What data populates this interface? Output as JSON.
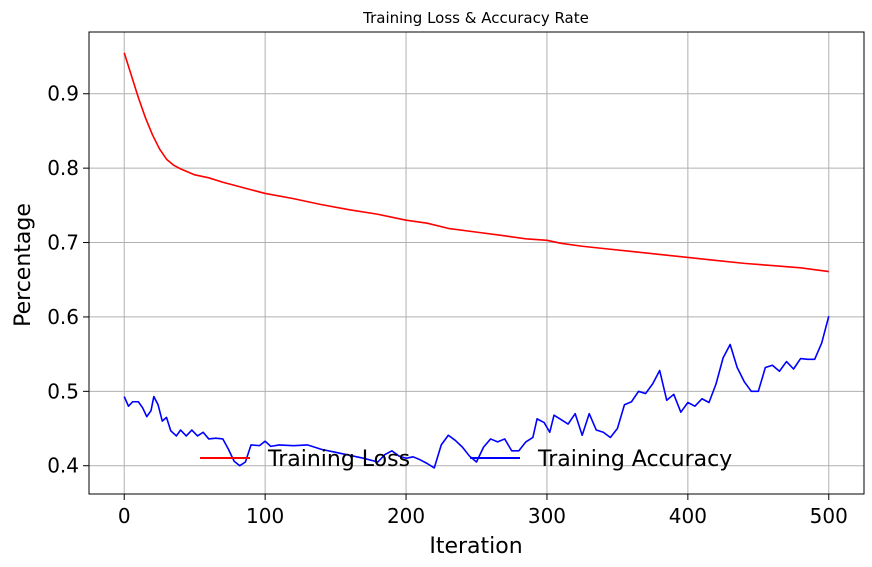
{
  "chart_data": {
    "type": "line",
    "title": "Training Loss & Accuracy Rate",
    "xlabel": "Iteration",
    "ylabel": "Percentage",
    "xlim": [
      -25,
      525
    ],
    "ylim": [
      0.362,
      0.983
    ],
    "xticks": [
      0,
      100,
      200,
      300,
      400,
      500
    ],
    "yticks": [
      0.4,
      0.5,
      0.6,
      0.7,
      0.8,
      0.9
    ],
    "grid": true,
    "legend": {
      "placement": "lower-center",
      "columns": 2
    },
    "series": [
      {
        "name": "Training Loss",
        "color": "#ff0000",
        "points": [
          [
            0,
            0.955
          ],
          [
            5,
            0.925
          ],
          [
            10,
            0.895
          ],
          [
            15,
            0.868
          ],
          [
            20,
            0.845
          ],
          [
            25,
            0.826
          ],
          [
            30,
            0.812
          ],
          [
            35,
            0.804
          ],
          [
            40,
            0.799
          ],
          [
            45,
            0.795
          ],
          [
            50,
            0.791
          ],
          [
            55,
            0.789
          ],
          [
            60,
            0.787
          ],
          [
            70,
            0.781
          ],
          [
            80,
            0.776
          ],
          [
            90,
            0.771
          ],
          [
            100,
            0.766
          ],
          [
            120,
            0.759
          ],
          [
            140,
            0.751
          ],
          [
            160,
            0.744
          ],
          [
            180,
            0.738
          ],
          [
            200,
            0.73
          ],
          [
            215,
            0.726
          ],
          [
            230,
            0.719
          ],
          [
            250,
            0.714
          ],
          [
            270,
            0.709
          ],
          [
            285,
            0.705
          ],
          [
            300,
            0.703
          ],
          [
            310,
            0.699
          ],
          [
            325,
            0.695
          ],
          [
            340,
            0.692
          ],
          [
            360,
            0.688
          ],
          [
            380,
            0.684
          ],
          [
            400,
            0.68
          ],
          [
            420,
            0.676
          ],
          [
            440,
            0.672
          ],
          [
            460,
            0.669
          ],
          [
            480,
            0.666
          ],
          [
            500,
            0.661
          ]
        ]
      },
      {
        "name": "Training Accuracy",
        "color": "#0000ff",
        "points": [
          [
            0,
            0.493
          ],
          [
            3,
            0.48
          ],
          [
            6,
            0.486
          ],
          [
            10,
            0.486
          ],
          [
            13,
            0.478
          ],
          [
            16,
            0.466
          ],
          [
            19,
            0.474
          ],
          [
            21,
            0.493
          ],
          [
            24,
            0.482
          ],
          [
            27,
            0.46
          ],
          [
            30,
            0.465
          ],
          [
            33,
            0.447
          ],
          [
            37,
            0.44
          ],
          [
            40,
            0.448
          ],
          [
            44,
            0.44
          ],
          [
            48,
            0.448
          ],
          [
            52,
            0.44
          ],
          [
            56,
            0.445
          ],
          [
            60,
            0.436
          ],
          [
            65,
            0.437
          ],
          [
            70,
            0.436
          ],
          [
            74,
            0.422
          ],
          [
            78,
            0.406
          ],
          [
            82,
            0.4
          ],
          [
            86,
            0.405
          ],
          [
            90,
            0.428
          ],
          [
            96,
            0.427
          ],
          [
            100,
            0.433
          ],
          [
            104,
            0.426
          ],
          [
            110,
            0.428
          ],
          [
            120,
            0.427
          ],
          [
            130,
            0.428
          ],
          [
            140,
            0.422
          ],
          [
            150,
            0.418
          ],
          [
            160,
            0.414
          ],
          [
            170,
            0.41
          ],
          [
            180,
            0.405
          ],
          [
            185,
            0.415
          ],
          [
            190,
            0.42
          ],
          [
            195,
            0.413
          ],
          [
            200,
            0.41
          ],
          [
            205,
            0.412
          ],
          [
            210,
            0.408
          ],
          [
            215,
            0.403
          ],
          [
            220,
            0.397
          ],
          [
            225,
            0.428
          ],
          [
            230,
            0.441
          ],
          [
            235,
            0.434
          ],
          [
            240,
            0.425
          ],
          [
            245,
            0.413
          ],
          [
            250,
            0.405
          ],
          [
            255,
            0.425
          ],
          [
            260,
            0.436
          ],
          [
            265,
            0.432
          ],
          [
            270,
            0.436
          ],
          [
            275,
            0.42
          ],
          [
            280,
            0.42
          ],
          [
            285,
            0.432
          ],
          [
            290,
            0.438
          ],
          [
            293,
            0.463
          ],
          [
            298,
            0.458
          ],
          [
            302,
            0.445
          ],
          [
            305,
            0.468
          ],
          [
            310,
            0.462
          ],
          [
            315,
            0.456
          ],
          [
            320,
            0.47
          ],
          [
            325,
            0.441
          ],
          [
            330,
            0.47
          ],
          [
            335,
            0.448
          ],
          [
            340,
            0.445
          ],
          [
            345,
            0.438
          ],
          [
            350,
            0.45
          ],
          [
            355,
            0.482
          ],
          [
            360,
            0.486
          ],
          [
            365,
            0.5
          ],
          [
            370,
            0.497
          ],
          [
            375,
            0.51
          ],
          [
            380,
            0.528
          ],
          [
            385,
            0.488
          ],
          [
            390,
            0.496
          ],
          [
            395,
            0.472
          ],
          [
            400,
            0.485
          ],
          [
            405,
            0.48
          ],
          [
            410,
            0.49
          ],
          [
            415,
            0.485
          ],
          [
            420,
            0.51
          ],
          [
            425,
            0.545
          ],
          [
            430,
            0.563
          ],
          [
            435,
            0.532
          ],
          [
            440,
            0.513
          ],
          [
            445,
            0.5
          ],
          [
            450,
            0.5
          ],
          [
            455,
            0.532
          ],
          [
            460,
            0.535
          ],
          [
            465,
            0.527
          ],
          [
            470,
            0.54
          ],
          [
            475,
            0.53
          ],
          [
            480,
            0.544
          ],
          [
            485,
            0.543
          ],
          [
            490,
            0.543
          ],
          [
            495,
            0.565
          ],
          [
            500,
            0.601
          ]
        ]
      }
    ]
  }
}
